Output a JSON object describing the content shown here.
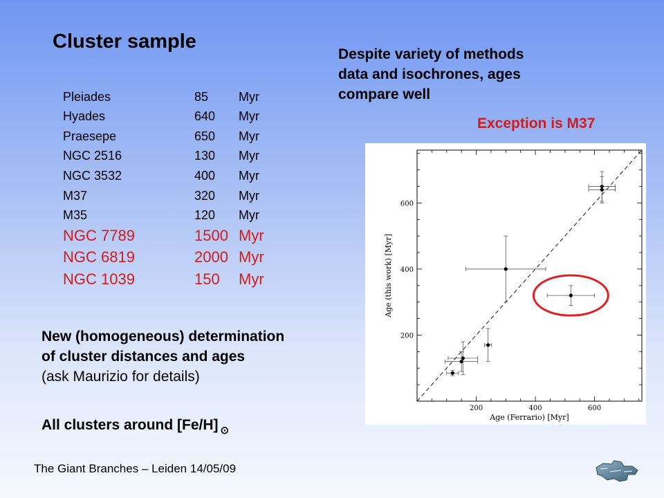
{
  "slide": {
    "title": "Cluster sample",
    "note_right": [
      "Despite variety of methods",
      "data and isochrones, ages",
      "compare well"
    ],
    "exception": "Exception is M37",
    "new_determination": {
      "line1": "New (homogeneous) determination",
      "line2": "of cluster distances and ages",
      "line3": "(ask Maurizio for details)"
    },
    "metallicity_note": "All clusters around [Fe/H]",
    "sun_symbol": "⊙",
    "footer": "The Giant Branches – Leiden 14/05/09",
    "highlight_color": "#d11c1c"
  },
  "clusters": [
    {
      "name": "Pleiades",
      "age": "85",
      "unit": "Myr",
      "highlight": false
    },
    {
      "name": "Hyades",
      "age": "640",
      "unit": "Myr",
      "highlight": false
    },
    {
      "name": "Praesepe",
      "age": "650",
      "unit": "Myr",
      "highlight": false
    },
    {
      "name": "NGC 2516",
      "age": "130",
      "unit": "Myr",
      "highlight": false
    },
    {
      "name": "NGC 3532",
      "age": "400",
      "unit": "Myr",
      "highlight": false
    },
    {
      "name": "M37",
      "age": "320",
      "unit": "Myr",
      "highlight": false
    },
    {
      "name": "M35",
      "age": "120",
      "unit": "Myr",
      "highlight": false
    },
    {
      "name": "NGC 7789",
      "age": "1500",
      "unit": "Myr",
      "highlight": true
    },
    {
      "name": "NGC 6819",
      "age": "2000",
      "unit": "Myr",
      "highlight": true
    },
    {
      "name": "NGC 1039",
      "age": "150",
      "unit": "Myr",
      "highlight": true
    }
  ],
  "chart_data": {
    "type": "scatter",
    "xlabel": "Age (Ferrario) [Myr]",
    "ylabel": "Age (this work) [Myr]",
    "xlim": [
      0,
      760
    ],
    "ylim": [
      0,
      760
    ],
    "xticks": [
      200,
      400,
      600
    ],
    "yticks": [
      200,
      400,
      600
    ],
    "reference_line": "y = x (dashed)",
    "grid": false,
    "points": [
      {
        "x": 625,
        "y": 650,
        "xerr": 45,
        "yerr": 45
      },
      {
        "x": 625,
        "y": 640,
        "xerr": 45,
        "yerr": 40
      },
      {
        "x": 300,
        "y": 400,
        "xerr": 135,
        "yerr": 100
      },
      {
        "x": 520,
        "y": 320,
        "xerr": 80,
        "yerr": 30
      },
      {
        "x": 240,
        "y": 170,
        "xerr": 12,
        "yerr": 50
      },
      {
        "x": 155,
        "y": 130,
        "xerr": 50,
        "yerr": 50
      },
      {
        "x": 150,
        "y": 120,
        "xerr": 55,
        "yerr": 30
      },
      {
        "x": 120,
        "y": 85,
        "xerr": 20,
        "yerr": 8
      }
    ],
    "highlight_point_index": 3,
    "highlight_color": "#e02020"
  }
}
